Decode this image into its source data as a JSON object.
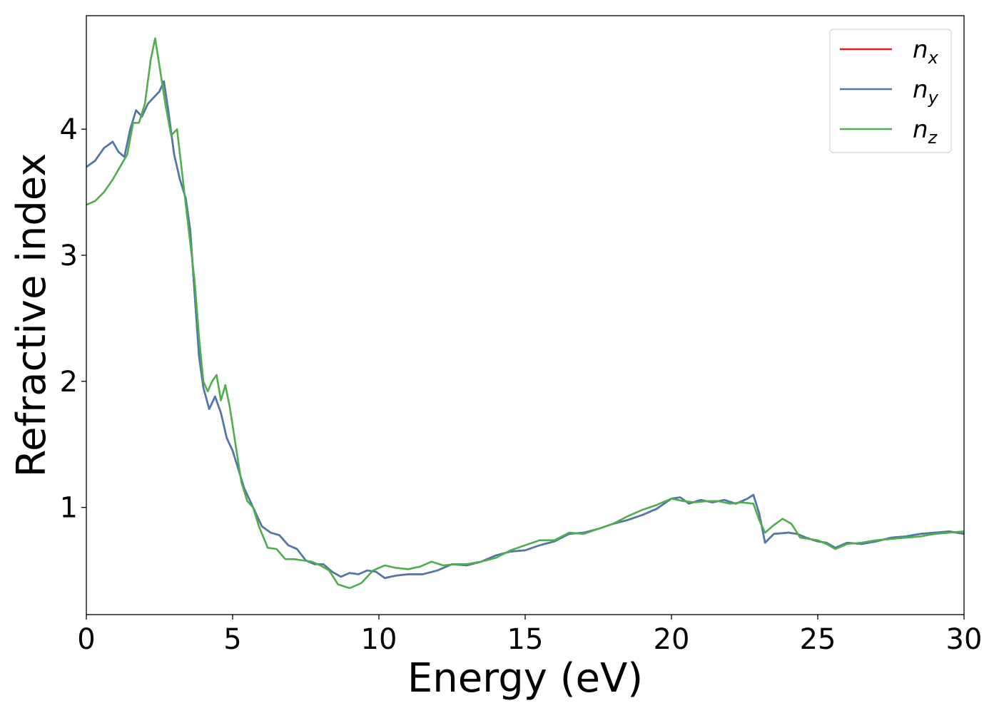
{
  "chart_data": {
    "type": "line",
    "xlabel": "Energy (eV)",
    "ylabel": "Refractive index",
    "xlim": [
      0,
      30
    ],
    "ylim": [
      0.15,
      4.9
    ],
    "xticks": [
      0,
      5,
      10,
      15,
      20,
      25,
      30
    ],
    "yticks": [
      1,
      2,
      3,
      4
    ],
    "grid": false,
    "legend_position": "top-right",
    "series": [
      {
        "name": "n_x",
        "label_main": "n",
        "label_sub": "x",
        "color": "#e41a1c",
        "points": [
          [
            0,
            3.7
          ],
          [
            0.3,
            3.75
          ],
          [
            0.6,
            3.85
          ],
          [
            0.9,
            3.9
          ],
          [
            1.1,
            3.82
          ],
          [
            1.3,
            3.78
          ],
          [
            1.5,
            4.0
          ],
          [
            1.7,
            4.15
          ],
          [
            1.9,
            4.1
          ],
          [
            2.1,
            4.2
          ],
          [
            2.3,
            4.25
          ],
          [
            2.5,
            4.3
          ],
          [
            2.65,
            4.38
          ],
          [
            2.8,
            4.15
          ],
          [
            3.0,
            3.8
          ],
          [
            3.2,
            3.6
          ],
          [
            3.4,
            3.45
          ],
          [
            3.55,
            3.2
          ],
          [
            3.7,
            2.7
          ],
          [
            3.85,
            2.2
          ],
          [
            4.0,
            1.95
          ],
          [
            4.2,
            1.78
          ],
          [
            4.4,
            1.88
          ],
          [
            4.6,
            1.75
          ],
          [
            4.8,
            1.55
          ],
          [
            5.0,
            1.45
          ],
          [
            5.2,
            1.3
          ],
          [
            5.4,
            1.15
          ],
          [
            5.6,
            1.05
          ],
          [
            5.8,
            0.95
          ],
          [
            6.0,
            0.85
          ],
          [
            6.3,
            0.8
          ],
          [
            6.6,
            0.78
          ],
          [
            6.9,
            0.7
          ],
          [
            7.2,
            0.67
          ],
          [
            7.5,
            0.58
          ],
          [
            7.8,
            0.55
          ],
          [
            8.1,
            0.55
          ],
          [
            8.4,
            0.49
          ],
          [
            8.7,
            0.45
          ],
          [
            9.0,
            0.48
          ],
          [
            9.3,
            0.47
          ],
          [
            9.6,
            0.5
          ],
          [
            9.9,
            0.49
          ],
          [
            10.2,
            0.44
          ],
          [
            10.6,
            0.46
          ],
          [
            11.0,
            0.47
          ],
          [
            11.5,
            0.47
          ],
          [
            12.0,
            0.5
          ],
          [
            12.5,
            0.55
          ],
          [
            13.0,
            0.54
          ],
          [
            13.5,
            0.57
          ],
          [
            14.0,
            0.62
          ],
          [
            14.5,
            0.65
          ],
          [
            15.0,
            0.66
          ],
          [
            15.5,
            0.7
          ],
          [
            16.0,
            0.73
          ],
          [
            16.5,
            0.79
          ],
          [
            17.0,
            0.8
          ],
          [
            17.5,
            0.83
          ],
          [
            18.0,
            0.87
          ],
          [
            18.5,
            0.9
          ],
          [
            19.0,
            0.94
          ],
          [
            19.5,
            0.99
          ],
          [
            20.0,
            1.07
          ],
          [
            20.3,
            1.08
          ],
          [
            20.6,
            1.03
          ],
          [
            21.0,
            1.06
          ],
          [
            21.4,
            1.04
          ],
          [
            21.8,
            1.06
          ],
          [
            22.2,
            1.03
          ],
          [
            22.6,
            1.07
          ],
          [
            22.8,
            1.1
          ],
          [
            23.0,
            0.95
          ],
          [
            23.2,
            0.72
          ],
          [
            23.5,
            0.79
          ],
          [
            24.0,
            0.8
          ],
          [
            24.3,
            0.79
          ],
          [
            24.6,
            0.76
          ],
          [
            25.0,
            0.73
          ],
          [
            25.3,
            0.72
          ],
          [
            25.6,
            0.68
          ],
          [
            26.0,
            0.72
          ],
          [
            26.5,
            0.71
          ],
          [
            27.0,
            0.73
          ],
          [
            27.5,
            0.76
          ],
          [
            28.0,
            0.77
          ],
          [
            28.5,
            0.79
          ],
          [
            29.0,
            0.8
          ],
          [
            29.5,
            0.81
          ],
          [
            30.0,
            0.79
          ]
        ]
      },
      {
        "name": "n_y",
        "label_main": "n",
        "label_sub": "y",
        "color": "#4a7ab0",
        "points": [
          [
            0,
            3.7
          ],
          [
            0.3,
            3.75
          ],
          [
            0.6,
            3.85
          ],
          [
            0.9,
            3.9
          ],
          [
            1.1,
            3.82
          ],
          [
            1.3,
            3.78
          ],
          [
            1.5,
            4.0
          ],
          [
            1.7,
            4.15
          ],
          [
            1.9,
            4.1
          ],
          [
            2.1,
            4.2
          ],
          [
            2.3,
            4.25
          ],
          [
            2.5,
            4.3
          ],
          [
            2.65,
            4.38
          ],
          [
            2.8,
            4.15
          ],
          [
            3.0,
            3.8
          ],
          [
            3.2,
            3.6
          ],
          [
            3.4,
            3.45
          ],
          [
            3.55,
            3.2
          ],
          [
            3.7,
            2.7
          ],
          [
            3.85,
            2.2
          ],
          [
            4.0,
            1.95
          ],
          [
            4.2,
            1.78
          ],
          [
            4.4,
            1.88
          ],
          [
            4.6,
            1.75
          ],
          [
            4.8,
            1.55
          ],
          [
            5.0,
            1.45
          ],
          [
            5.2,
            1.3
          ],
          [
            5.4,
            1.15
          ],
          [
            5.6,
            1.05
          ],
          [
            5.8,
            0.95
          ],
          [
            6.0,
            0.85
          ],
          [
            6.3,
            0.8
          ],
          [
            6.6,
            0.78
          ],
          [
            6.9,
            0.7
          ],
          [
            7.2,
            0.67
          ],
          [
            7.5,
            0.58
          ],
          [
            7.8,
            0.55
          ],
          [
            8.1,
            0.55
          ],
          [
            8.4,
            0.49
          ],
          [
            8.7,
            0.45
          ],
          [
            9.0,
            0.48
          ],
          [
            9.3,
            0.47
          ],
          [
            9.6,
            0.5
          ],
          [
            9.9,
            0.49
          ],
          [
            10.2,
            0.44
          ],
          [
            10.6,
            0.46
          ],
          [
            11.0,
            0.47
          ],
          [
            11.5,
            0.47
          ],
          [
            12.0,
            0.5
          ],
          [
            12.5,
            0.55
          ],
          [
            13.0,
            0.54
          ],
          [
            13.5,
            0.57
          ],
          [
            14.0,
            0.62
          ],
          [
            14.5,
            0.65
          ],
          [
            15.0,
            0.66
          ],
          [
            15.5,
            0.7
          ],
          [
            16.0,
            0.73
          ],
          [
            16.5,
            0.79
          ],
          [
            17.0,
            0.8
          ],
          [
            17.5,
            0.83
          ],
          [
            18.0,
            0.87
          ],
          [
            18.5,
            0.9
          ],
          [
            19.0,
            0.94
          ],
          [
            19.5,
            0.99
          ],
          [
            20.0,
            1.07
          ],
          [
            20.3,
            1.08
          ],
          [
            20.6,
            1.03
          ],
          [
            21.0,
            1.06
          ],
          [
            21.4,
            1.04
          ],
          [
            21.8,
            1.06
          ],
          [
            22.2,
            1.03
          ],
          [
            22.6,
            1.07
          ],
          [
            22.8,
            1.1
          ],
          [
            23.0,
            0.95
          ],
          [
            23.2,
            0.72
          ],
          [
            23.5,
            0.79
          ],
          [
            24.0,
            0.8
          ],
          [
            24.3,
            0.79
          ],
          [
            24.6,
            0.76
          ],
          [
            25.0,
            0.73
          ],
          [
            25.3,
            0.72
          ],
          [
            25.6,
            0.68
          ],
          [
            26.0,
            0.72
          ],
          [
            26.5,
            0.71
          ],
          [
            27.0,
            0.73
          ],
          [
            27.5,
            0.76
          ],
          [
            28.0,
            0.77
          ],
          [
            28.5,
            0.79
          ],
          [
            29.0,
            0.8
          ],
          [
            29.5,
            0.81
          ],
          [
            30.0,
            0.79
          ]
        ]
      },
      {
        "name": "n_z",
        "label_main": "n",
        "label_sub": "z",
        "color": "#4daf4a",
        "points": [
          [
            0,
            3.4
          ],
          [
            0.3,
            3.43
          ],
          [
            0.6,
            3.5
          ],
          [
            0.9,
            3.6
          ],
          [
            1.2,
            3.72
          ],
          [
            1.4,
            3.8
          ],
          [
            1.6,
            4.05
          ],
          [
            1.8,
            4.05
          ],
          [
            2.0,
            4.2
          ],
          [
            2.2,
            4.55
          ],
          [
            2.35,
            4.72
          ],
          [
            2.5,
            4.5
          ],
          [
            2.7,
            4.2
          ],
          [
            2.9,
            3.95
          ],
          [
            3.1,
            4.0
          ],
          [
            3.3,
            3.6
          ],
          [
            3.5,
            3.2
          ],
          [
            3.7,
            2.8
          ],
          [
            3.85,
            2.35
          ],
          [
            4.0,
            2.0
          ],
          [
            4.15,
            1.92
          ],
          [
            4.3,
            2.0
          ],
          [
            4.45,
            2.05
          ],
          [
            4.6,
            1.85
          ],
          [
            4.75,
            1.97
          ],
          [
            4.9,
            1.8
          ],
          [
            5.1,
            1.5
          ],
          [
            5.3,
            1.2
          ],
          [
            5.5,
            1.05
          ],
          [
            5.7,
            1.0
          ],
          [
            5.9,
            0.85
          ],
          [
            6.2,
            0.68
          ],
          [
            6.5,
            0.67
          ],
          [
            6.8,
            0.59
          ],
          [
            7.1,
            0.59
          ],
          [
            7.4,
            0.58
          ],
          [
            7.7,
            0.57
          ],
          [
            8.0,
            0.54
          ],
          [
            8.3,
            0.5
          ],
          [
            8.6,
            0.39
          ],
          [
            9.0,
            0.36
          ],
          [
            9.4,
            0.4
          ],
          [
            9.8,
            0.5
          ],
          [
            10.2,
            0.54
          ],
          [
            10.6,
            0.52
          ],
          [
            11.0,
            0.51
          ],
          [
            11.4,
            0.53
          ],
          [
            11.8,
            0.57
          ],
          [
            12.2,
            0.54
          ],
          [
            12.6,
            0.55
          ],
          [
            13.0,
            0.55
          ],
          [
            13.5,
            0.57
          ],
          [
            14.0,
            0.6
          ],
          [
            14.5,
            0.66
          ],
          [
            15.0,
            0.7
          ],
          [
            15.5,
            0.74
          ],
          [
            16.0,
            0.74
          ],
          [
            16.5,
            0.8
          ],
          [
            17.0,
            0.79
          ],
          [
            17.5,
            0.83
          ],
          [
            18.0,
            0.87
          ],
          [
            18.5,
            0.93
          ],
          [
            19.0,
            0.98
          ],
          [
            19.5,
            1.02
          ],
          [
            20.0,
            1.07
          ],
          [
            20.4,
            1.05
          ],
          [
            20.8,
            1.04
          ],
          [
            21.2,
            1.05
          ],
          [
            21.6,
            1.05
          ],
          [
            22.0,
            1.03
          ],
          [
            22.4,
            1.04
          ],
          [
            22.8,
            1.03
          ],
          [
            23.0,
            0.9
          ],
          [
            23.2,
            0.8
          ],
          [
            23.5,
            0.86
          ],
          [
            23.8,
            0.91
          ],
          [
            24.1,
            0.87
          ],
          [
            24.4,
            0.76
          ],
          [
            24.7,
            0.75
          ],
          [
            25.0,
            0.74
          ],
          [
            25.3,
            0.71
          ],
          [
            25.6,
            0.67
          ],
          [
            26.0,
            0.71
          ],
          [
            26.5,
            0.72
          ],
          [
            27.0,
            0.74
          ],
          [
            27.5,
            0.75
          ],
          [
            28.0,
            0.76
          ],
          [
            28.5,
            0.77
          ],
          [
            29.0,
            0.79
          ],
          [
            29.5,
            0.8
          ],
          [
            30.0,
            0.81
          ]
        ]
      }
    ]
  }
}
